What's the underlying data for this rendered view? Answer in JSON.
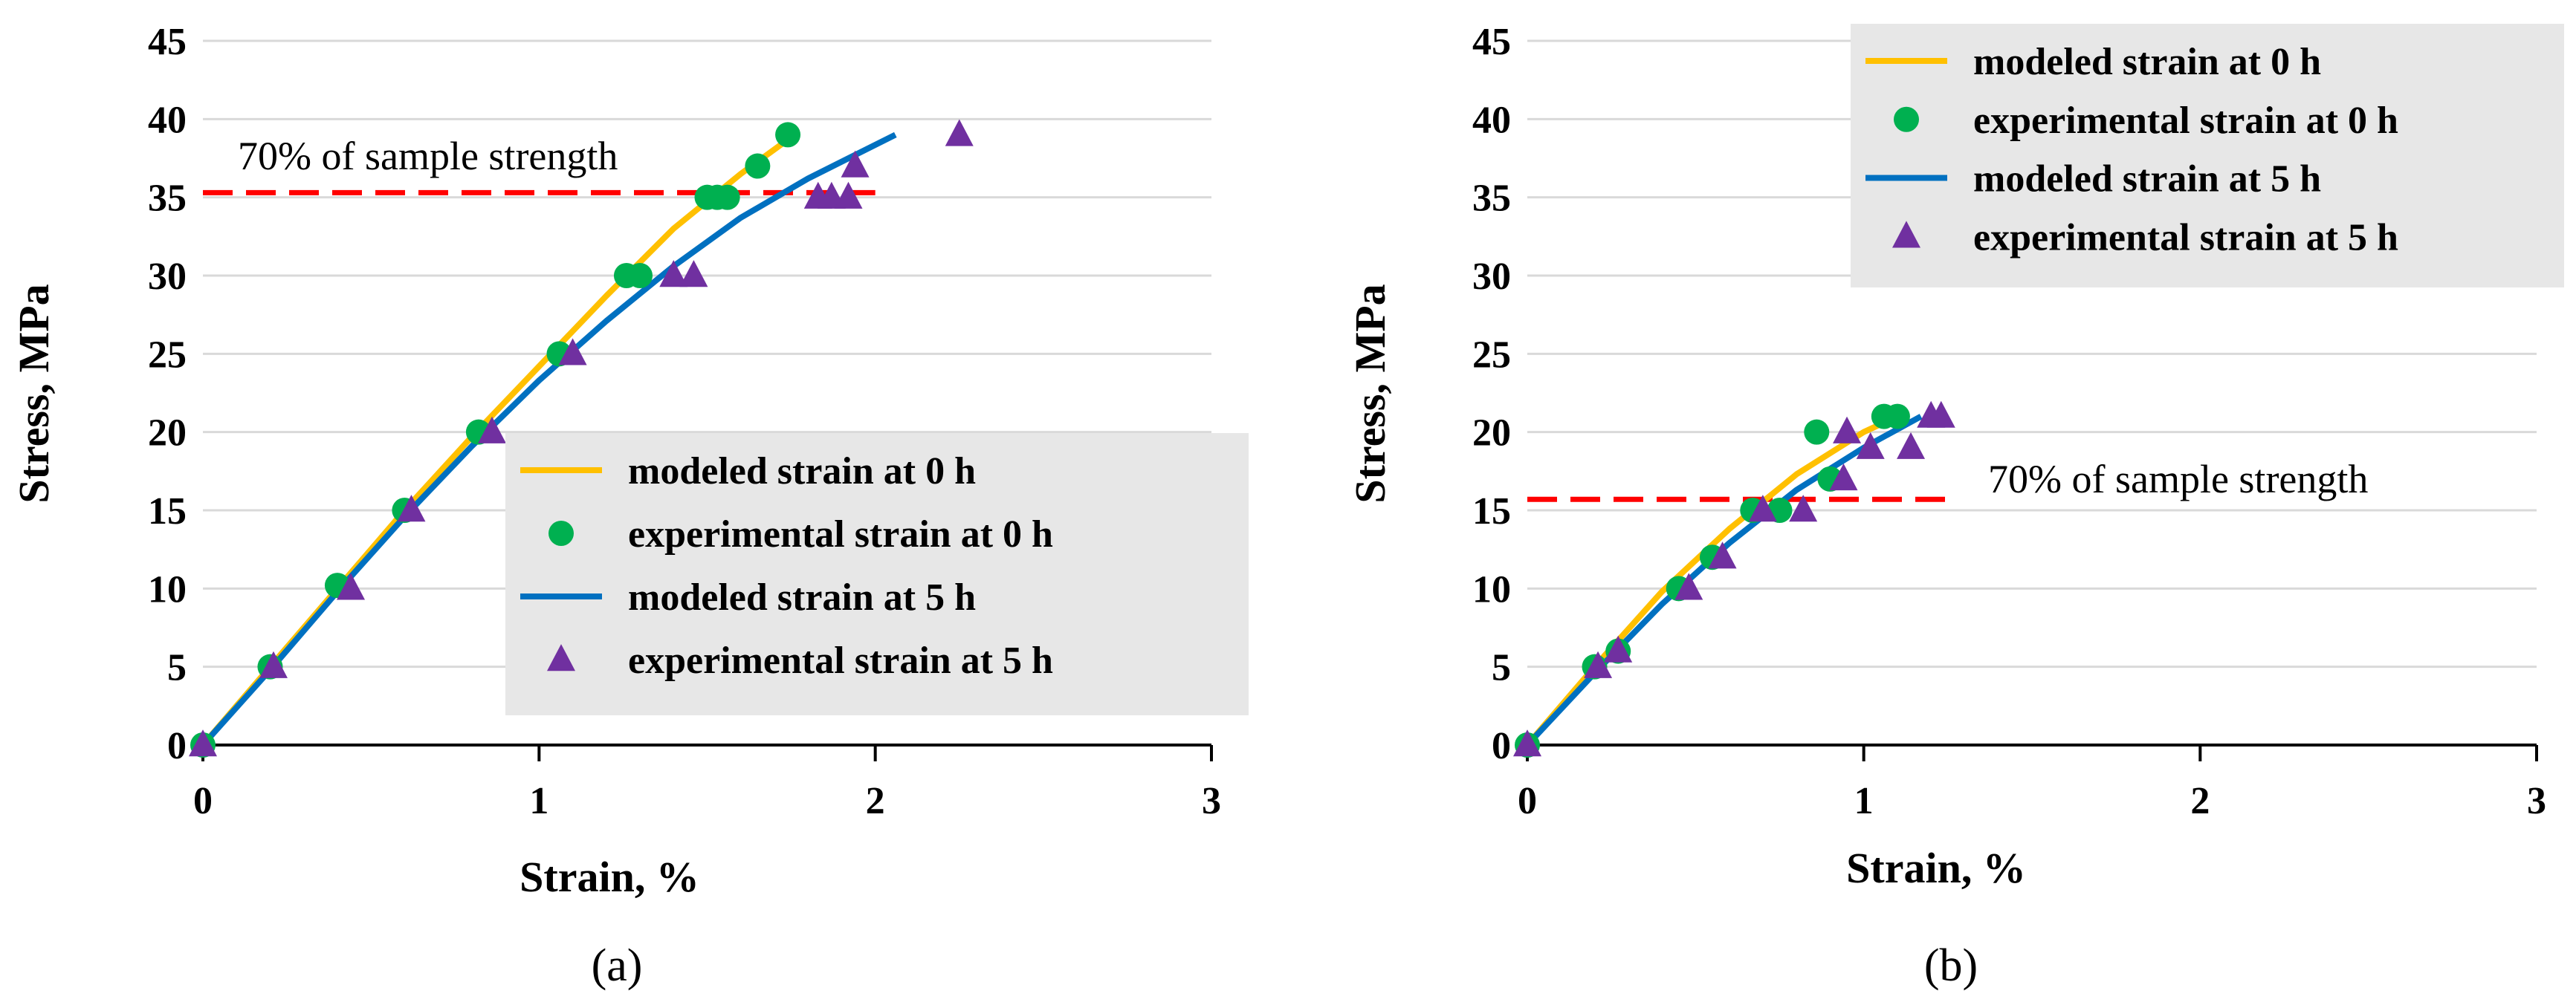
{
  "chart_data": [
    {
      "type": "scatter",
      "panel_label": "(a)",
      "xlabel": "Strain, %",
      "ylabel": "Stress, MPa",
      "xlim": [
        0,
        3
      ],
      "ylim": [
        0,
        45
      ],
      "xticks": [
        0,
        1,
        2,
        3
      ],
      "yticks": [
        0,
        5,
        10,
        15,
        20,
        25,
        30,
        35,
        40,
        45
      ],
      "grid": "horizontal",
      "legend_position": "bottom-right",
      "threshold": {
        "label": "70% of sample strength",
        "y": 35.3,
        "x_range": [
          0,
          2.0
        ],
        "color": "#ff0000"
      },
      "series": [
        {
          "name": "modeled strain at 0 h",
          "kind": "line",
          "color": "#ffc000",
          "x": [
            0,
            0.2,
            0.4,
            0.6,
            0.8,
            1.0,
            1.2,
            1.4,
            1.6,
            1.76
          ],
          "y": [
            0,
            5,
            10,
            15,
            19.7,
            24.2,
            28.7,
            33.0,
            36.5,
            39.0
          ]
        },
        {
          "name": "experimental strain at 0 h",
          "kind": "marker",
          "marker": "circle",
          "color": "#00b050",
          "x": [
            0,
            0.2,
            0.4,
            0.6,
            0.82,
            1.06,
            1.26,
            1.3,
            1.5,
            1.53,
            1.56,
            1.65,
            1.74
          ],
          "y": [
            0,
            5,
            10.2,
            15,
            20,
            25,
            30,
            30,
            35,
            35,
            35,
            37,
            39
          ]
        },
        {
          "name": "modeled strain at 5 h",
          "kind": "line",
          "color": "#0070c0",
          "x": [
            0,
            0.2,
            0.4,
            0.6,
            0.8,
            1.0,
            1.2,
            1.4,
            1.6,
            1.8,
            2.06
          ],
          "y": [
            0,
            4.8,
            9.8,
            14.6,
            19.1,
            23.3,
            27.1,
            30.6,
            33.7,
            36.2,
            39.0
          ]
        },
        {
          "name": "experimental strain at 5 h",
          "kind": "marker",
          "marker": "triangle",
          "color": "#7030a0",
          "x": [
            0,
            0.21,
            0.44,
            0.62,
            0.86,
            1.1,
            1.4,
            1.46,
            1.83,
            1.87,
            1.92,
            1.94,
            2.25
          ],
          "y": [
            0,
            5,
            10,
            15,
            20,
            25,
            30,
            30,
            35,
            35,
            35,
            37,
            39
          ]
        }
      ]
    },
    {
      "type": "scatter",
      "panel_label": "(b)",
      "xlabel": "Strain, %",
      "ylabel": "Stress, MPa",
      "xlim": [
        0,
        3
      ],
      "ylim": [
        0,
        45
      ],
      "xticks": [
        0,
        1,
        2,
        3
      ],
      "yticks": [
        0,
        5,
        10,
        15,
        20,
        25,
        30,
        35,
        40,
        45
      ],
      "grid": "horizontal",
      "legend_position": "top-right",
      "threshold": {
        "label": "70% of sample strength",
        "y": 15.7,
        "x_range": [
          0,
          1.27
        ],
        "color": "#ff0000"
      },
      "series": [
        {
          "name": "modeled strain at 0 h",
          "kind": "line",
          "color": "#ffc000",
          "x": [
            0,
            0.2,
            0.4,
            0.6,
            0.8,
            1.0,
            1.1
          ],
          "y": [
            0,
            5,
            9.8,
            13.8,
            17.3,
            20.0,
            21.0
          ]
        },
        {
          "name": "experimental strain at 0 h",
          "kind": "marker",
          "marker": "circle",
          "color": "#00b050",
          "x": [
            0,
            0.2,
            0.27,
            0.45,
            0.55,
            0.67,
            0.75,
            0.86,
            0.9,
            1.06,
            1.1
          ],
          "y": [
            0,
            5,
            6,
            10,
            12,
            15,
            15,
            20,
            17,
            21,
            21
          ]
        },
        {
          "name": "modeled strain at 5 h",
          "kind": "line",
          "color": "#0070c0",
          "x": [
            0,
            0.2,
            0.4,
            0.6,
            0.8,
            1.0,
            1.17
          ],
          "y": [
            0,
            4.6,
            9.0,
            12.9,
            16.3,
            19.0,
            21.0
          ]
        },
        {
          "name": "experimental strain at 5 h",
          "kind": "marker",
          "marker": "triangle",
          "color": "#7030a0",
          "x": [
            0,
            0.21,
            0.27,
            0.48,
            0.58,
            0.7,
            0.82,
            0.94,
            0.95,
            1.02,
            1.14,
            1.2,
            1.23
          ],
          "y": [
            0,
            5,
            6,
            10,
            12,
            15,
            15,
            17,
            20,
            19,
            19,
            21,
            21
          ]
        }
      ]
    }
  ]
}
